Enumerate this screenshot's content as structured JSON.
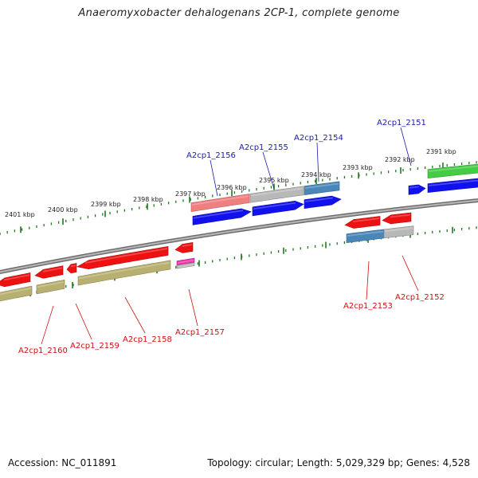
{
  "title": "Anaeromyxobacter dehalogenans 2CP-1, complete genome",
  "footer": {
    "accession": "Accession: NC_011891",
    "summary": "Topology: circular; Length: 5,029,329 bp; Genes: 4,528"
  },
  "scale_labels": [
    "2401 kbp",
    "2400 kbp",
    "2399 kbp",
    "2398 kbp",
    "2397 kbp",
    "2396 kbp",
    "2395 kbp",
    "2394 kbp",
    "2393 kbp",
    "2392 kbp",
    "2391 kbp"
  ],
  "gene_labels_top": [
    "A2cp1_2156",
    "A2cp1_2155",
    "A2cp1_2154",
    "A2cp1_2151"
  ],
  "gene_labels_bottom": [
    "A2cp1_2160",
    "A2cp1_2159",
    "A2cp1_2158",
    "A2cp1_2157",
    "A2cp1_2153",
    "A2cp1_2152"
  ],
  "colors": {
    "label_top": "#1a1aaa",
    "label_bottom": "#cc1111",
    "tick": "#1f7a1f",
    "backbone": "#888888",
    "red_gene": "#ee1111",
    "blue_gene": "#1111ee",
    "olive_gene": "#b8b070",
    "steel_gene": "#4a86b8",
    "gray_gene": "#b8b8b8",
    "pink_gene": "#f08080",
    "green_gene": "#44cc44",
    "magenta_gene": "#ee33aa"
  }
}
